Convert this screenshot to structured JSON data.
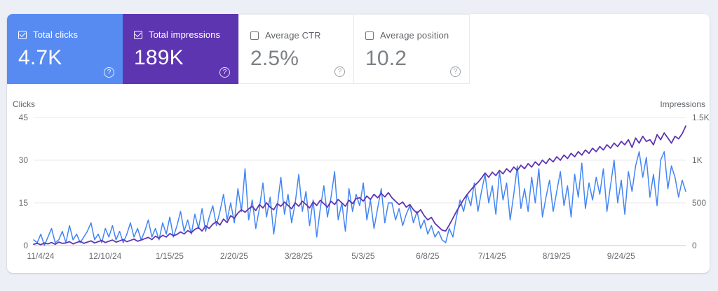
{
  "colors": {
    "page_background": "#eceff5",
    "panel_background": "#ffffff",
    "clicks_accent": "#578bf2",
    "impressions_accent": "#5e35b1",
    "clicks_line": "#4285f4",
    "impressions_line": "#5e35b1",
    "gridline": "#e8e9ec",
    "axis_line": "#c4c7cb"
  },
  "icons": {
    "help": "?"
  },
  "cards": [
    {
      "label": "Total clicks",
      "value": "4.7K",
      "checked": true,
      "bg": "#578bf2"
    },
    {
      "label": "Total impressions",
      "value": "189K",
      "checked": true,
      "bg": "#5e35b1"
    },
    {
      "label": "Average CTR",
      "value": "2.5%",
      "checked": false,
      "bg": ""
    },
    {
      "label": "Average position",
      "value": "10.2",
      "checked": false,
      "bg": ""
    }
  ],
  "chart_data": {
    "type": "line",
    "grid": "horizontal",
    "left_axis": {
      "title": "Clicks",
      "max": 45,
      "tick_values": [
        0,
        15,
        30,
        45
      ],
      "tick_labels": [
        "0",
        "15",
        "30",
        "45"
      ]
    },
    "right_axis": {
      "title": "Impressions",
      "max": 1500,
      "tick_values": [
        0,
        500,
        1000,
        1500
      ],
      "tick_labels": [
        "0",
        "500",
        "1K",
        "1.5K"
      ]
    },
    "x_ticks": [
      "11/4/24",
      "12/10/24",
      "1/15/25",
      "2/20/25",
      "3/28/25",
      "5/3/25",
      "6/8/25",
      "7/14/25",
      "8/19/25",
      "9/24/25"
    ],
    "x_tick_day_offsets": [
      0,
      36,
      72,
      108,
      144,
      180,
      216,
      252,
      288,
      324
    ],
    "x_total_days": 364,
    "point_step_days": 2,
    "series": [
      {
        "name": "Total clicks",
        "axis": "left",
        "color": "#4285f4",
        "stroke_width": 1.5,
        "values": [
          2,
          1,
          4,
          0,
          3,
          6,
          1,
          2,
          5,
          1,
          7,
          2,
          4,
          1,
          3,
          5,
          8,
          2,
          4,
          1,
          6,
          3,
          7,
          2,
          5,
          1,
          4,
          8,
          3,
          6,
          2,
          5,
          9,
          3,
          6,
          2,
          8,
          4,
          10,
          3,
          7,
          12,
          5,
          9,
          4,
          11,
          6,
          13,
          5,
          10,
          14,
          7,
          12,
          18,
          9,
          15,
          8,
          20,
          12,
          27,
          9,
          16,
          6,
          13,
          22,
          10,
          17,
          4,
          14,
          24,
          11,
          18,
          8,
          15,
          25,
          12,
          19,
          7,
          16,
          3,
          13,
          21,
          10,
          17,
          26,
          9,
          15,
          5,
          20,
          12,
          18,
          14,
          22,
          9,
          16,
          6,
          13,
          20,
          8,
          15,
          15,
          9,
          13,
          7,
          11,
          14,
          8,
          12,
          6,
          9,
          4,
          7,
          3,
          5,
          2,
          1,
          6,
          3,
          10,
          16,
          12,
          18,
          14,
          22,
          12,
          19,
          25,
          15,
          21,
          11,
          26,
          16,
          22,
          9,
          18,
          28,
          13,
          20,
          12,
          24,
          15,
          27,
          10,
          17,
          23,
          12,
          19,
          26,
          14,
          21,
          10,
          25,
          17,
          29,
          13,
          22,
          16,
          24,
          18,
          27,
          12,
          21,
          30,
          15,
          23,
          11,
          26,
          19,
          28,
          33,
          24,
          31,
          17,
          25,
          14,
          30,
          33,
          20,
          28,
          24,
          17,
          23,
          19
        ]
      },
      {
        "name": "Total impressions",
        "axis": "right",
        "color": "#5e35b1",
        "stroke_width": 1.8,
        "values": [
          15,
          25,
          10,
          30,
          20,
          35,
          15,
          40,
          25,
          30,
          45,
          20,
          35,
          50,
          25,
          40,
          55,
          30,
          45,
          60,
          35,
          50,
          65,
          40,
          55,
          70,
          45,
          60,
          75,
          50,
          65,
          80,
          95,
          70,
          110,
          85,
          120,
          100,
          140,
          115,
          130,
          160,
          135,
          175,
          150,
          190,
          210,
          170,
          230,
          200,
          250,
          280,
          240,
          310,
          270,
          350,
          320,
          380,
          420,
          390,
          430,
          460,
          410,
          480,
          440,
          500,
          450,
          420,
          490,
          460,
          510,
          470,
          430,
          500,
          460,
          520,
          480,
          440,
          510,
          470,
          530,
          490,
          450,
          520,
          480,
          540,
          500,
          460,
          530,
          490,
          550,
          560,
          520,
          580,
          540,
          600,
          560,
          610,
          570,
          620,
          560,
          520,
          480,
          510,
          450,
          480,
          420,
          380,
          420,
          350,
          300,
          330,
          260,
          220,
          180,
          170,
          240,
          320,
          400,
          470,
          540,
          600,
          650,
          700,
          740,
          790,
          850,
          800,
          860,
          820,
          880,
          840,
          900,
          860,
          920,
          880,
          940,
          900,
          960,
          920,
          980,
          940,
          1000,
          960,
          1020,
          980,
          1040,
          1000,
          1060,
          1020,
          1080,
          1040,
          1100,
          1060,
          1120,
          1080,
          1140,
          1100,
          1160,
          1120,
          1180,
          1140,
          1200,
          1160,
          1220,
          1180,
          1240,
          1150,
          1260,
          1200,
          1280,
          1220,
          1240,
          1180,
          1300,
          1240,
          1320,
          1260,
          1200,
          1280,
          1250,
          1310,
          1400
        ]
      }
    ]
  }
}
